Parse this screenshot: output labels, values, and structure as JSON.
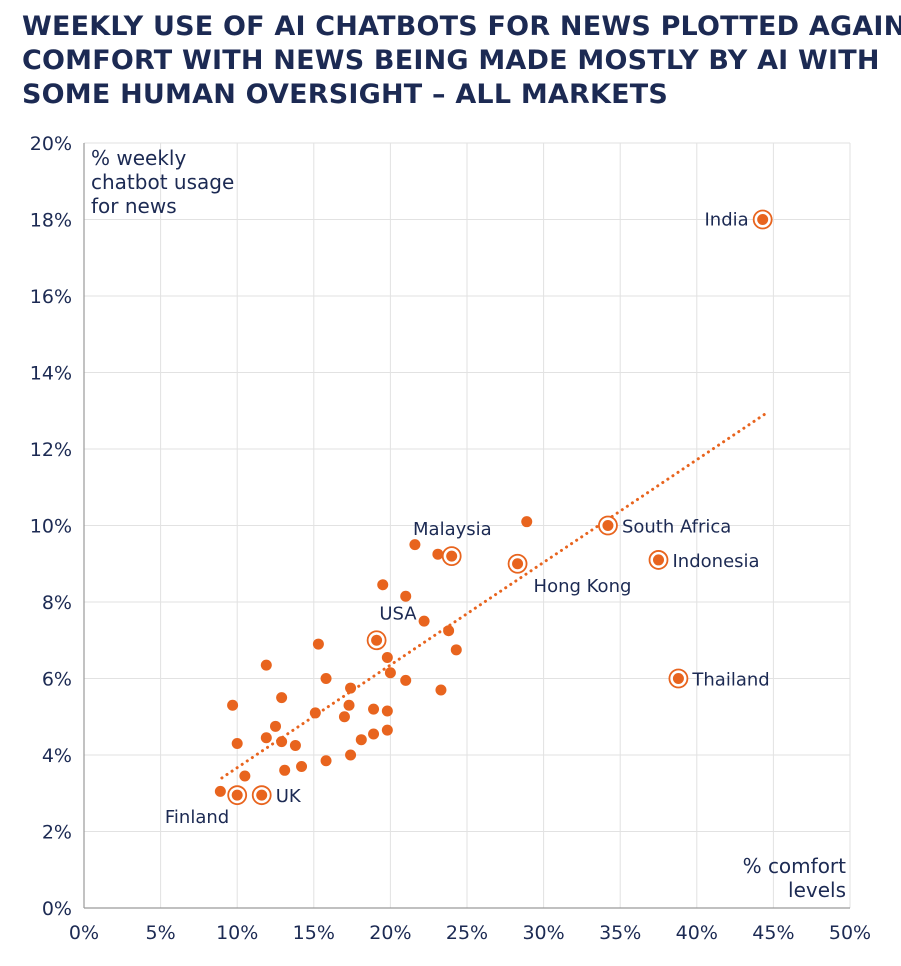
{
  "title_lines": [
    "WEEKLY USE OF AI CHATBOTS FOR NEWS PLOTTED AGAINST",
    "COMFORT WITH NEWS BEING MADE MOSTLY BY AI WITH",
    "SOME HUMAN OVERSIGHT – ALL MARKETS"
  ],
  "chart_data": {
    "type": "scatter",
    "title": "WEEKLY USE OF AI CHATBOTS FOR NEWS PLOTTED AGAINST COMFORT WITH NEWS BEING MADE MOSTLY BY AI WITH SOME HUMAN OVERSIGHT – ALL MARKETS",
    "ylabel_lines": [
      "% weekly",
      "chatbot usage",
      "for news"
    ],
    "xlabel_lines": [
      "% comfort",
      "levels"
    ],
    "xlim": [
      0,
      50
    ],
    "ylim": [
      0,
      20
    ],
    "x_ticks": [
      "0%",
      "5%",
      "10%",
      "15%",
      "20%",
      "25%",
      "30%",
      "35%",
      "40%",
      "45%",
      "50%"
    ],
    "y_ticks": [
      "0%",
      "2%",
      "4%",
      "6%",
      "8%",
      "10%",
      "12%",
      "14%",
      "16%",
      "18%",
      "20%"
    ],
    "grid": true,
    "dot_color": "#e8641e",
    "text_color": "#1c2a53",
    "trendline": {
      "style": "dotted",
      "from": [
        9,
        3.4
      ],
      "to": [
        44.4,
        12.9
      ]
    },
    "labeled_points": [
      {
        "label": "India",
        "x": 44.3,
        "y": 18.0,
        "label_side": "left"
      },
      {
        "label": "Malaysia",
        "x": 24.0,
        "y": 9.2,
        "label_side": "above-left"
      },
      {
        "label": "South Africa",
        "x": 34.2,
        "y": 10.0,
        "label_side": "right"
      },
      {
        "label": "Indonesia",
        "x": 37.5,
        "y": 9.1,
        "label_side": "right"
      },
      {
        "label": "Hong Kong",
        "x": 28.3,
        "y": 9.0,
        "label_side": "below-right"
      },
      {
        "label": "USA",
        "x": 19.1,
        "y": 7.0,
        "label_side": "above-left"
      },
      {
        "label": "Thailand",
        "x": 38.8,
        "y": 6.0,
        "label_side": "right"
      },
      {
        "label": "Finland",
        "x": 10.0,
        "y": 2.95,
        "label_side": "below-left"
      },
      {
        "label": "UK",
        "x": 11.6,
        "y": 2.95,
        "label_side": "right"
      }
    ],
    "points": [
      {
        "x": 28.9,
        "y": 10.1
      },
      {
        "x": 21.6,
        "y": 9.5
      },
      {
        "x": 23.1,
        "y": 9.25
      },
      {
        "x": 19.5,
        "y": 8.45
      },
      {
        "x": 21.0,
        "y": 8.15
      },
      {
        "x": 22.2,
        "y": 7.5
      },
      {
        "x": 23.8,
        "y": 7.25
      },
      {
        "x": 15.3,
        "y": 6.9
      },
      {
        "x": 24.3,
        "y": 6.75
      },
      {
        "x": 19.8,
        "y": 6.55
      },
      {
        "x": 11.9,
        "y": 6.35
      },
      {
        "x": 20.0,
        "y": 6.15
      },
      {
        "x": 15.8,
        "y": 6.0
      },
      {
        "x": 21.0,
        "y": 5.95
      },
      {
        "x": 17.4,
        "y": 5.75
      },
      {
        "x": 23.3,
        "y": 5.7
      },
      {
        "x": 12.9,
        "y": 5.5
      },
      {
        "x": 9.7,
        "y": 5.3
      },
      {
        "x": 17.3,
        "y": 5.3
      },
      {
        "x": 18.9,
        "y": 5.2
      },
      {
        "x": 19.8,
        "y": 5.15
      },
      {
        "x": 15.1,
        "y": 5.1
      },
      {
        "x": 17.0,
        "y": 5.0
      },
      {
        "x": 12.5,
        "y": 4.75
      },
      {
        "x": 19.8,
        "y": 4.65
      },
      {
        "x": 18.9,
        "y": 4.55
      },
      {
        "x": 11.9,
        "y": 4.45
      },
      {
        "x": 18.1,
        "y": 4.4
      },
      {
        "x": 12.9,
        "y": 4.35
      },
      {
        "x": 10.0,
        "y": 4.3
      },
      {
        "x": 13.8,
        "y": 4.25
      },
      {
        "x": 17.4,
        "y": 4.0
      },
      {
        "x": 15.8,
        "y": 3.85
      },
      {
        "x": 14.2,
        "y": 3.7
      },
      {
        "x": 13.1,
        "y": 3.6
      },
      {
        "x": 10.5,
        "y": 3.45
      },
      {
        "x": 8.9,
        "y": 3.05
      }
    ]
  }
}
